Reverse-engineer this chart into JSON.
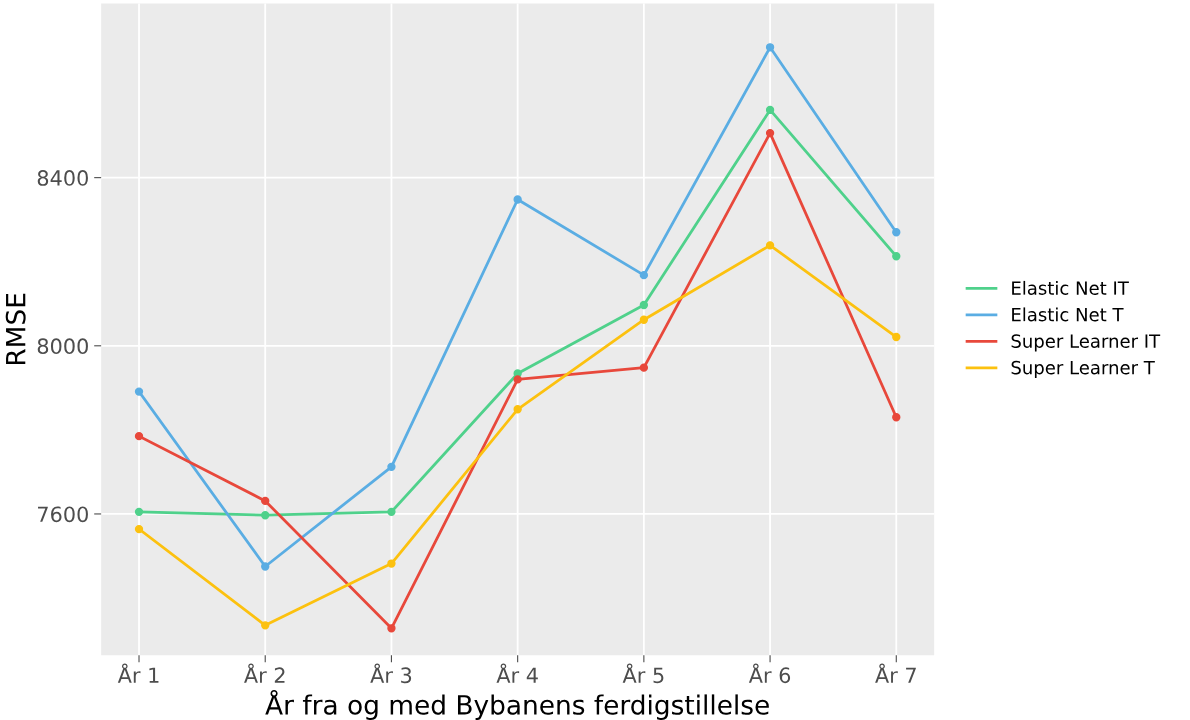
{
  "chart_data": {
    "type": "line",
    "xlabel": "År fra og med Bybanens ferdigstillelse",
    "ylabel": "RMSE",
    "categories": [
      "År 1",
      "År 2",
      "År 3",
      "År 4",
      "År 5",
      "År 6",
      "År 7"
    ],
    "series": [
      {
        "name": "Elastic Net IT",
        "color": "#4fd18b",
        "values": [
          7605,
          7597,
          7605,
          7934,
          8097,
          8561,
          8213
        ]
      },
      {
        "name": "Elastic Net T",
        "color": "#5aade3",
        "values": [
          7891,
          7475,
          7712,
          8348,
          8168,
          8710,
          8270
        ]
      },
      {
        "name": "Super Learner IT",
        "color": "#e8483b",
        "values": [
          7785,
          7631,
          7328,
          7920,
          7948,
          8506,
          7830
        ]
      },
      {
        "name": "Super Learner T",
        "color": "#fcc10f",
        "values": [
          7564,
          7335,
          7482,
          7849,
          8062,
          8239,
          8021
        ]
      }
    ],
    "ylim": [
      7264,
      8814
    ],
    "yticks": [
      7600,
      8000,
      8400
    ],
    "grid": true,
    "legend": "right",
    "marker": "circle",
    "line_style": "solid"
  }
}
